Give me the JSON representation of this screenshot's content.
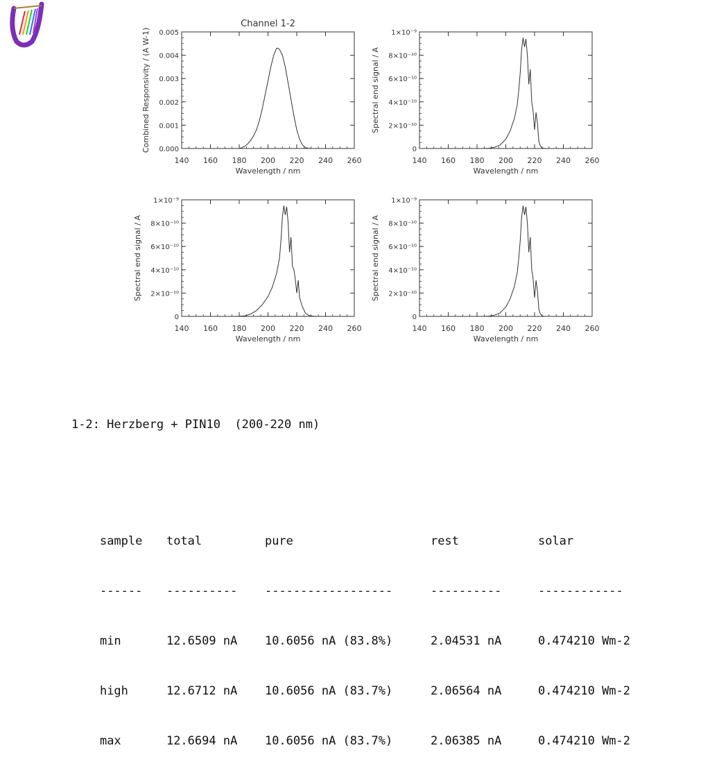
{
  "logo_icon": "lyre-icon",
  "colors": {
    "line": "#333333",
    "text": "#333333",
    "logo_purple": "#7a2fb5"
  },
  "chart_data": [
    {
      "type": "line",
      "title": "Channel 1-2",
      "xlabel": "Wavelength / nm",
      "ylabel": "Combined Responsivity / (A W-1)",
      "xlim": [
        140,
        260
      ],
      "ylim": [
        0,
        0.005
      ],
      "xticks": [
        "140",
        "160",
        "180",
        "200",
        "220",
        "240",
        "260"
      ],
      "yticks": [
        "0.000",
        "0.001",
        "0.002",
        "0.003",
        "0.004",
        "0.005"
      ],
      "grid": false,
      "series": [
        {
          "x": [
            140,
            180,
            182,
            184,
            186,
            188,
            190,
            192,
            194,
            196,
            198,
            200,
            202,
            204,
            206,
            207,
            208,
            210,
            212,
            214,
            216,
            218,
            220,
            222,
            224,
            226,
            228,
            230,
            260
          ],
          "y": [
            0,
            0,
            4e-05,
            0.0001,
            0.0002,
            0.00035,
            0.00055,
            0.0008,
            0.0012,
            0.0017,
            0.0023,
            0.0029,
            0.0035,
            0.004,
            0.0043,
            0.0043,
            0.00425,
            0.004,
            0.0035,
            0.0028,
            0.0021,
            0.0014,
            0.0008,
            0.0004,
            0.00015,
            4e-05,
            1e-05,
            0,
            0
          ]
        }
      ]
    },
    {
      "type": "line",
      "xlabel": "Wavelength / nm",
      "ylabel": "Spectral end signal / A",
      "xlim": [
        140,
        260
      ],
      "ylim": [
        0,
        1e-09
      ],
      "xticks": [
        "140",
        "160",
        "180",
        "200",
        "220",
        "240",
        "260"
      ],
      "yticks": [
        "0",
        "2×10⁻¹⁰",
        "4×10⁻¹⁰",
        "6×10⁻¹⁰",
        "8×10⁻¹⁰",
        "1×10⁻⁹"
      ],
      "grid": false,
      "series": [
        {
          "x": [
            140,
            184,
            188,
            192,
            196,
            200,
            203,
            206,
            208,
            209,
            210,
            211,
            212,
            213,
            214,
            215,
            216,
            217,
            218,
            219,
            220,
            221,
            222,
            223,
            224,
            226,
            228,
            260
          ],
          "y": [
            0,
            0,
            1e-12,
            1e-11,
            3e-11,
            8e-11,
            1.5e-10,
            2.6e-10,
            3.8e-10,
            5e-10,
            6.5e-10,
            8.5e-10,
            9.5e-10,
            8.7e-10,
            9.4e-10,
            8e-10,
            5.5e-10,
            6.8e-10,
            4e-10,
            3.2e-10,
            1.6e-10,
            3.1e-10,
            2.2e-10,
            6e-11,
            2e-11,
            1e-12,
            0,
            0
          ]
        }
      ]
    },
    {
      "type": "line",
      "xlabel": "Wavelength / nm",
      "ylabel": "Spectral end signal / A",
      "xlim": [
        140,
        260
      ],
      "ylim": [
        0,
        1e-09
      ],
      "xticks": [
        "140",
        "160",
        "180",
        "200",
        "220",
        "240",
        "260"
      ],
      "yticks": [
        "0",
        "2×10⁻¹⁰",
        "4×10⁻¹⁰",
        "6×10⁻¹⁰",
        "8×10⁻¹⁰",
        "1×10⁻⁹"
      ],
      "grid": false,
      "series": [
        {
          "x": [
            140,
            176,
            180,
            184,
            188,
            192,
            196,
            200,
            203,
            206,
            208,
            209,
            210,
            211,
            212,
            213,
            214,
            215,
            216,
            217,
            218,
            219,
            220,
            221,
            222,
            224,
            226,
            228,
            230,
            234,
            260
          ],
          "y": [
            0,
            0,
            1e-12,
            5e-12,
            2e-11,
            5e-11,
            1e-10,
            1.7e-10,
            2.5e-10,
            3.7e-10,
            5e-10,
            6.5e-10,
            8.5e-10,
            9.5e-10,
            8.7e-10,
            9.4e-10,
            8e-10,
            5.5e-10,
            6.8e-10,
            4.3e-10,
            4e-10,
            3.2e-10,
            2e-10,
            3.1e-10,
            1.6e-10,
            8e-11,
            3e-11,
            1e-11,
            3e-12,
            0,
            0
          ]
        }
      ]
    },
    {
      "type": "line",
      "xlabel": "Wavelength / nm",
      "ylabel": "Spectral end signal / A",
      "xlim": [
        140,
        260
      ],
      "ylim": [
        0,
        1e-09
      ],
      "xticks": [
        "140",
        "160",
        "180",
        "200",
        "220",
        "240",
        "260"
      ],
      "yticks": [
        "0",
        "2×10⁻¹⁰",
        "4×10⁻¹⁰",
        "6×10⁻¹⁰",
        "8×10⁻¹⁰",
        "1×10⁻⁹"
      ],
      "grid": false,
      "series": [
        {
          "x": [
            140,
            184,
            188,
            192,
            196,
            200,
            203,
            206,
            208,
            209,
            210,
            211,
            212,
            213,
            214,
            215,
            216,
            217,
            218,
            219,
            220,
            221,
            222,
            223,
            224,
            226,
            228,
            260
          ],
          "y": [
            0,
            0,
            1e-12,
            1e-11,
            3e-11,
            8e-11,
            1.5e-10,
            2.6e-10,
            3.8e-10,
            5e-10,
            6.5e-10,
            8.5e-10,
            9.5e-10,
            8.7e-10,
            9.4e-10,
            8e-10,
            5.5e-10,
            6.8e-10,
            4e-10,
            3.2e-10,
            1.6e-10,
            3.1e-10,
            2.2e-10,
            6e-11,
            2e-11,
            1e-12,
            0,
            0
          ]
        }
      ]
    }
  ],
  "summary": {
    "heading": "1-2: Herzberg + PIN10  (200-220 nm)",
    "headers": [
      "sample",
      "total",
      "pure",
      "rest",
      "solar"
    ],
    "separators": [
      "------",
      "----------",
      "------------------",
      "----------",
      "------------"
    ],
    "rows": [
      [
        "min",
        "12.6509 nA",
        "10.6056 nA (83.8%)",
        "2.04531 nA",
        "0.474210 Wm-2"
      ],
      [
        "high",
        "12.6712 nA",
        "10.6056 nA (83.7%)",
        "2.06564 nA",
        "0.474210 Wm-2"
      ],
      [
        "max",
        "12.6694 nA",
        "10.6056 nA (83.7%)",
        "2.06385 nA",
        "0.474210 Wm-2"
      ]
    ]
  }
}
